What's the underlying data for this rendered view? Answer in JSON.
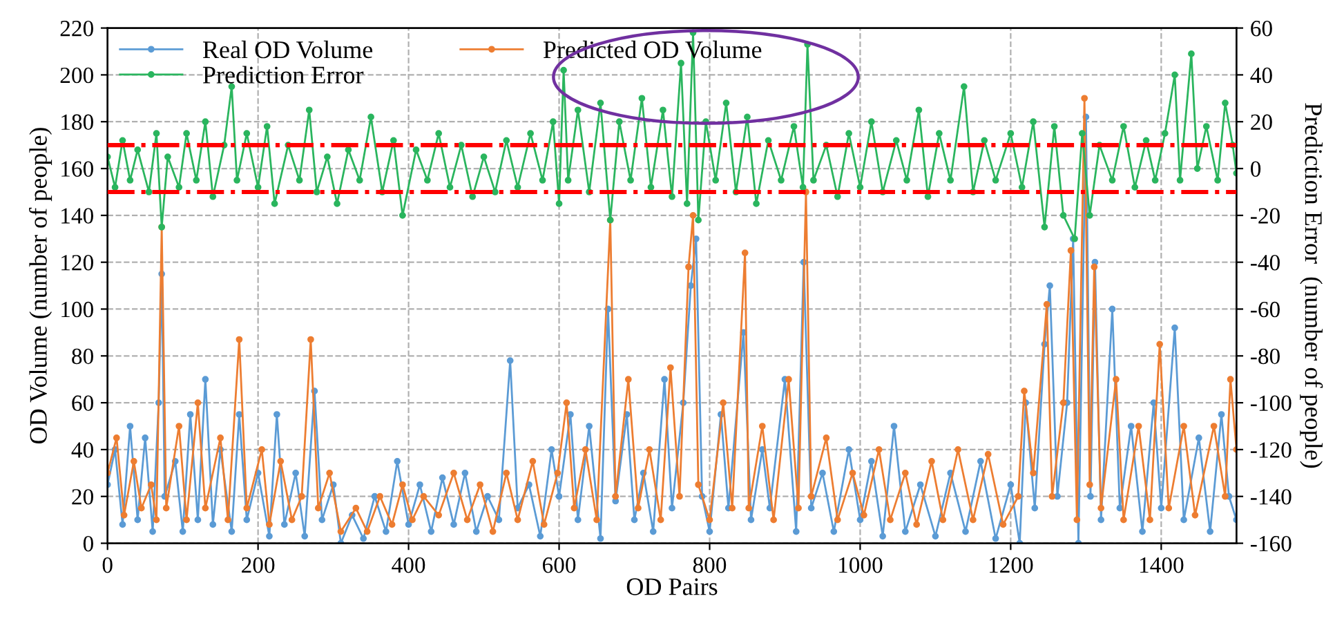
{
  "chart_data": {
    "type": "line",
    "xlabel": "OD Pairs",
    "ylabel": "OD Volume (number of people)",
    "y2label": "Prediction Error  (number of people)",
    "xlim": [
      0,
      1500
    ],
    "xticks": [
      0,
      200,
      400,
      600,
      800,
      1000,
      1200,
      1400
    ],
    "ylim": [
      0,
      220
    ],
    "yticks": [
      0,
      20,
      40,
      60,
      80,
      100,
      120,
      140,
      160,
      180,
      200,
      220
    ],
    "y2lim": [
      -160,
      60
    ],
    "y2ticks": [
      -160,
      -140,
      -120,
      -100,
      -80,
      -60,
      -40,
      -20,
      0,
      20,
      40,
      60
    ],
    "grid": true,
    "legend": "top left",
    "marker": "circle",
    "line_style": "solid",
    "ref_lines": [
      {
        "axis": "y2",
        "value": 10,
        "label": null,
        "color": "#ff0000",
        "line_style": "dashdot"
      },
      {
        "axis": "y2",
        "value": -10,
        "label": null,
        "color": "#ff0000",
        "line_style": "dashdot"
      }
    ],
    "series": [
      {
        "name": "Real OD Volume",
        "color": "#5b9bd5",
        "x": [
          0,
          10,
          20,
          30,
          40,
          50,
          60,
          68,
          72,
          76,
          90,
          100,
          110,
          120,
          130,
          140,
          150,
          165,
          175,
          185,
          200,
          215,
          225,
          235,
          250,
          262,
          275,
          285,
          300,
          310,
          325,
          340,
          355,
          370,
          385,
          400,
          415,
          430,
          445,
          460,
          475,
          490,
          505,
          520,
          535,
          545,
          560,
          575,
          590,
          600,
          615,
          625,
          640,
          655,
          665,
          675,
          690,
          700,
          712,
          725,
          740,
          750,
          765,
          775,
          782,
          790,
          800,
          815,
          825,
          845,
          855,
          870,
          880,
          900,
          915,
          925,
          935,
          950,
          965,
          985,
          1000,
          1015,
          1030,
          1045,
          1060,
          1080,
          1100,
          1120,
          1140,
          1160,
          1180,
          1200,
          1212,
          1220,
          1232,
          1245,
          1252,
          1262,
          1275,
          1283,
          1290,
          1300,
          1306,
          1312,
          1320,
          1335,
          1345,
          1360,
          1375,
          1390,
          1400,
          1418,
          1430,
          1450,
          1465,
          1480,
          1490,
          1500
        ],
        "values": [
          25,
          40,
          8,
          50,
          10,
          45,
          5,
          60,
          115,
          20,
          35,
          5,
          55,
          10,
          70,
          8,
          40,
          5,
          55,
          10,
          30,
          3,
          55,
          8,
          30,
          3,
          65,
          10,
          25,
          0,
          12,
          2,
          20,
          5,
          35,
          8,
          25,
          5,
          28,
          8,
          30,
          5,
          20,
          10,
          78,
          15,
          25,
          3,
          40,
          20,
          55,
          10,
          50,
          2,
          100,
          18,
          55,
          10,
          30,
          5,
          70,
          15,
          60,
          110,
          130,
          20,
          5,
          55,
          15,
          90,
          10,
          40,
          15,
          70,
          5,
          120,
          15,
          30,
          5,
          40,
          10,
          35,
          3,
          50,
          5,
          25,
          3,
          30,
          5,
          35,
          2,
          25,
          0,
          60,
          15,
          85,
          110,
          20,
          60,
          130,
          0,
          182,
          20,
          120,
          10,
          100,
          15,
          50,
          5,
          60,
          15,
          92,
          10,
          45,
          5,
          55,
          20,
          10
        ]
      },
      {
        "name": "Predicted OD Volume",
        "color": "#ed7d31",
        "x": [
          0,
          12,
          22,
          35,
          45,
          58,
          65,
          72,
          78,
          95,
          105,
          120,
          130,
          150,
          160,
          175,
          185,
          205,
          215,
          230,
          245,
          258,
          270,
          280,
          295,
          310,
          330,
          345,
          362,
          378,
          392,
          405,
          420,
          440,
          460,
          478,
          495,
          512,
          530,
          545,
          565,
          580,
          598,
          610,
          620,
          635,
          650,
          668,
          675,
          692,
          705,
          720,
          735,
          748,
          760,
          772,
          778,
          785,
          800,
          818,
          830,
          847,
          852,
          870,
          885,
          905,
          918,
          928,
          935,
          955,
          970,
          990,
          1005,
          1025,
          1040,
          1060,
          1075,
          1095,
          1110,
          1130,
          1150,
          1170,
          1190,
          1210,
          1218,
          1230,
          1248,
          1255,
          1270,
          1280,
          1288,
          1298,
          1305,
          1311,
          1320,
          1340,
          1350,
          1370,
          1385,
          1398,
          1410,
          1430,
          1445,
          1470,
          1485,
          1492,
          1500
        ],
        "values": [
          30,
          45,
          12,
          35,
          15,
          25,
          10,
          135,
          15,
          50,
          10,
          60,
          15,
          45,
          10,
          87,
          15,
          40,
          8,
          35,
          10,
          20,
          87,
          15,
          30,
          5,
          15,
          5,
          20,
          8,
          25,
          10,
          20,
          12,
          30,
          10,
          25,
          5,
          30,
          10,
          35,
          8,
          30,
          60,
          15,
          40,
          10,
          138,
          20,
          70,
          15,
          40,
          10,
          75,
          20,
          118,
          140,
          25,
          10,
          60,
          15,
          124,
          15,
          50,
          10,
          70,
          15,
          150,
          20,
          45,
          10,
          30,
          12,
          40,
          10,
          30,
          8,
          35,
          10,
          40,
          10,
          38,
          8,
          20,
          65,
          30,
          102,
          20,
          60,
          125,
          10,
          190,
          25,
          118,
          15,
          70,
          10,
          50,
          10,
          85,
          15,
          50,
          12,
          50,
          20,
          70,
          40
        ]
      },
      {
        "name": "Prediction Error",
        "color": "#2ab55e",
        "axis": "y2",
        "x": [
          0,
          10,
          20,
          30,
          40,
          55,
          65,
          72,
          80,
          95,
          105,
          118,
          130,
          140,
          155,
          165,
          172,
          185,
          200,
          212,
          222,
          240,
          255,
          268,
          278,
          292,
          305,
          320,
          335,
          350,
          365,
          380,
          392,
          410,
          425,
          440,
          455,
          470,
          485,
          500,
          515,
          530,
          545,
          562,
          578,
          592,
          600,
          606,
          612,
          625,
          640,
          655,
          668,
          680,
          695,
          710,
          722,
          738,
          750,
          762,
          770,
          778,
          785,
          795,
          808,
          822,
          835,
          850,
          862,
          878,
          895,
          912,
          924,
          930,
          938,
          955,
          970,
          985,
          1000,
          1015,
          1030,
          1048,
          1062,
          1078,
          1090,
          1105,
          1120,
          1138,
          1150,
          1165,
          1180,
          1200,
          1215,
          1230,
          1245,
          1258,
          1270,
          1285,
          1295,
          1305,
          1318,
          1335,
          1350,
          1365,
          1380,
          1392,
          1405,
          1418,
          1425,
          1440,
          1448,
          1460,
          1475,
          1485,
          1495,
          1500
        ],
        "values": [
          5,
          -8,
          12,
          -5,
          8,
          -10,
          15,
          -25,
          5,
          -8,
          15,
          -5,
          20,
          -12,
          10,
          35,
          -5,
          15,
          -8,
          18,
          -15,
          10,
          -5,
          25,
          -10,
          5,
          -15,
          8,
          -5,
          22,
          -10,
          12,
          -20,
          8,
          -5,
          15,
          -8,
          10,
          -12,
          5,
          -10,
          12,
          -8,
          15,
          -5,
          20,
          -15,
          42,
          -5,
          25,
          -10,
          28,
          -22,
          20,
          -5,
          30,
          -8,
          25,
          -12,
          45,
          -15,
          58,
          -22,
          20,
          -5,
          28,
          -10,
          22,
          -15,
          12,
          -5,
          18,
          -8,
          53,
          -5,
          10,
          -12,
          15,
          -8,
          20,
          -10,
          12,
          -5,
          25,
          -12,
          15,
          -5,
          35,
          -10,
          12,
          -5,
          15,
          -8,
          20,
          -25,
          18,
          -20,
          -30,
          15,
          -20,
          10,
          -5,
          18,
          -8,
          12,
          -5,
          15,
          40,
          -5,
          49,
          0,
          18,
          -5,
          28,
          10,
          -2
        ]
      }
    ]
  }
}
